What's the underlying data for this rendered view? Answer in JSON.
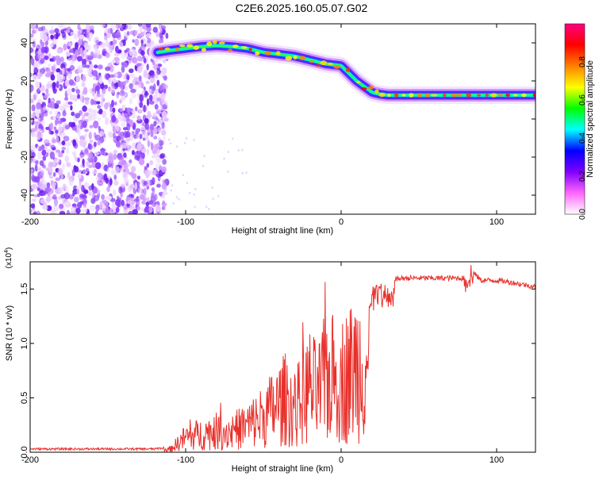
{
  "title": "C2E6.2025.160.05.07.G02",
  "chart_data": [
    {
      "type": "heatmap",
      "title": "C2E6.2025.160.05.07.G02",
      "xlabel": "Height of straight line (km)",
      "ylabel": "Frequency (Hz)",
      "xlim": [
        -200,
        125
      ],
      "ylim": [
        -50,
        50
      ],
      "xticks": [
        -200,
        -100,
        0,
        100
      ],
      "yticks": [
        -40,
        -20,
        0,
        20,
        40
      ],
      "colorbar": {
        "label": "Normalized spectral amplitude",
        "range": [
          0,
          1
        ],
        "ticks": [
          0.0,
          0.2,
          0.4,
          0.6,
          0.8
        ],
        "colors": [
          "#ffffff",
          "#ff66ff",
          "#8000ff",
          "#0000ff",
          "#00ffff",
          "#00ff00",
          "#ffff00",
          "#ff8000",
          "#ff0000",
          "#ff0080"
        ]
      },
      "signal_track": {
        "x": [
          -118,
          -110,
          -100,
          -90,
          -80,
          -70,
          -60,
          -50,
          -40,
          -30,
          -20,
          -10,
          0,
          5,
          10,
          15,
          20,
          25,
          30,
          40,
          50,
          60,
          70,
          80,
          90,
          100,
          110,
          125
        ],
        "y": [
          35,
          36,
          37,
          38,
          38.5,
          38,
          37,
          35,
          34,
          33,
          31,
          29,
          28,
          24,
          20,
          17,
          14,
          13,
          12.5,
          12.5,
          12.5,
          12.5,
          12.5,
          12.5,
          12.5,
          12.5,
          12.5,
          12.5
        ]
      },
      "noise_region": {
        "x": [
          -200,
          -120
        ],
        "y": [
          -50,
          50
        ]
      }
    },
    {
      "type": "line",
      "xlabel": "Height of straight line (km)",
      "ylabel": "SNR (10 * v/v)",
      "multiplier": "(x10^4)",
      "multiplier_base": "(x10",
      "multiplier_exp": "4",
      "xlim": [
        -200,
        125
      ],
      "ylim": [
        0,
        1.75
      ],
      "xticks": [
        -200,
        -100,
        0,
        100
      ],
      "yticks": [
        0.0,
        0.5,
        1.0,
        1.5
      ],
      "ytick_labels": [
        "0.0",
        "0.5",
        "1.0",
        "1.5"
      ],
      "color": "#e8302b",
      "envelope": {
        "x": [
          -200,
          -120,
          -110,
          -100,
          -90,
          -80,
          -70,
          -60,
          -50,
          -40,
          -35,
          -30,
          -20,
          -15,
          -10,
          0,
          5,
          10,
          15,
          20,
          30,
          40,
          60,
          80,
          85,
          90,
          100,
          110,
          125
        ],
        "y": [
          0.03,
          0.03,
          0.05,
          0.25,
          0.3,
          0.35,
          0.35,
          0.45,
          0.6,
          0.8,
          0.9,
          0.7,
          1.1,
          0.95,
          1.25,
          1.2,
          1.3,
          1.45,
          1.5,
          1.55,
          1.58,
          1.6,
          1.6,
          1.6,
          1.65,
          1.58,
          1.58,
          1.56,
          1.52
        ]
      }
    }
  ]
}
